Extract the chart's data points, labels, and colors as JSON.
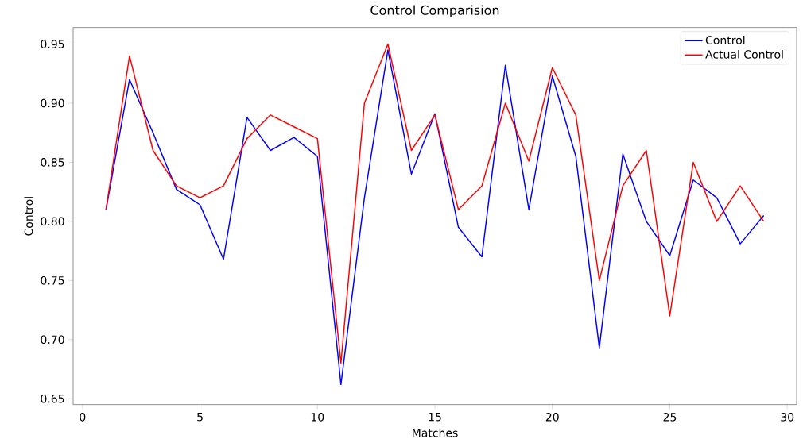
{
  "chart_data": {
    "type": "line",
    "title": "Control Comparision",
    "xlabel": "Matches",
    "ylabel": "Control",
    "x": [
      1,
      2,
      3,
      4,
      5,
      6,
      7,
      8,
      9,
      10,
      11,
      12,
      13,
      14,
      15,
      16,
      17,
      18,
      19,
      20,
      21,
      22,
      23,
      24,
      25,
      26,
      27,
      28,
      29
    ],
    "series": [
      {
        "name": "Control",
        "color": "#0000ff",
        "values": [
          0.81,
          0.92,
          0.875,
          0.827,
          0.814,
          0.768,
          0.888,
          0.86,
          0.871,
          0.855,
          0.662,
          0.82,
          0.945,
          0.84,
          0.891,
          0.795,
          0.77,
          0.932,
          0.81,
          0.923,
          0.855,
          0.693,
          0.857,
          0.8,
          0.771,
          0.835,
          0.82,
          0.781,
          0.805
        ]
      },
      {
        "name": "Actual Control",
        "color": "#ff0000",
        "values": [
          0.81,
          0.94,
          0.86,
          0.83,
          0.82,
          0.83,
          0.87,
          0.89,
          0.88,
          0.87,
          0.68,
          0.9,
          0.95,
          0.86,
          0.89,
          0.81,
          0.83,
          0.9,
          0.851,
          0.93,
          0.89,
          0.75,
          0.83,
          0.86,
          0.72,
          0.85,
          0.8,
          0.83,
          0.8
        ]
      }
    ],
    "xlim": [
      -0.4,
      30.4
    ],
    "ylim": [
      0.645,
      0.964
    ],
    "xticks": [
      0,
      5,
      10,
      15,
      20,
      25,
      30
    ],
    "yticks": [
      {
        "value": 0.65,
        "label": "0.65"
      },
      {
        "value": 0.7,
        "label": "0.70"
      },
      {
        "value": 0.75,
        "label": "0.75"
      },
      {
        "value": 0.8,
        "label": "0.80"
      },
      {
        "value": 0.85,
        "label": "0.85"
      },
      {
        "value": 0.9,
        "label": "0.90"
      },
      {
        "value": 0.95,
        "label": "0.95"
      }
    ],
    "legend": "top right",
    "grid": false,
    "marker": "none",
    "line_style": "solid"
  }
}
